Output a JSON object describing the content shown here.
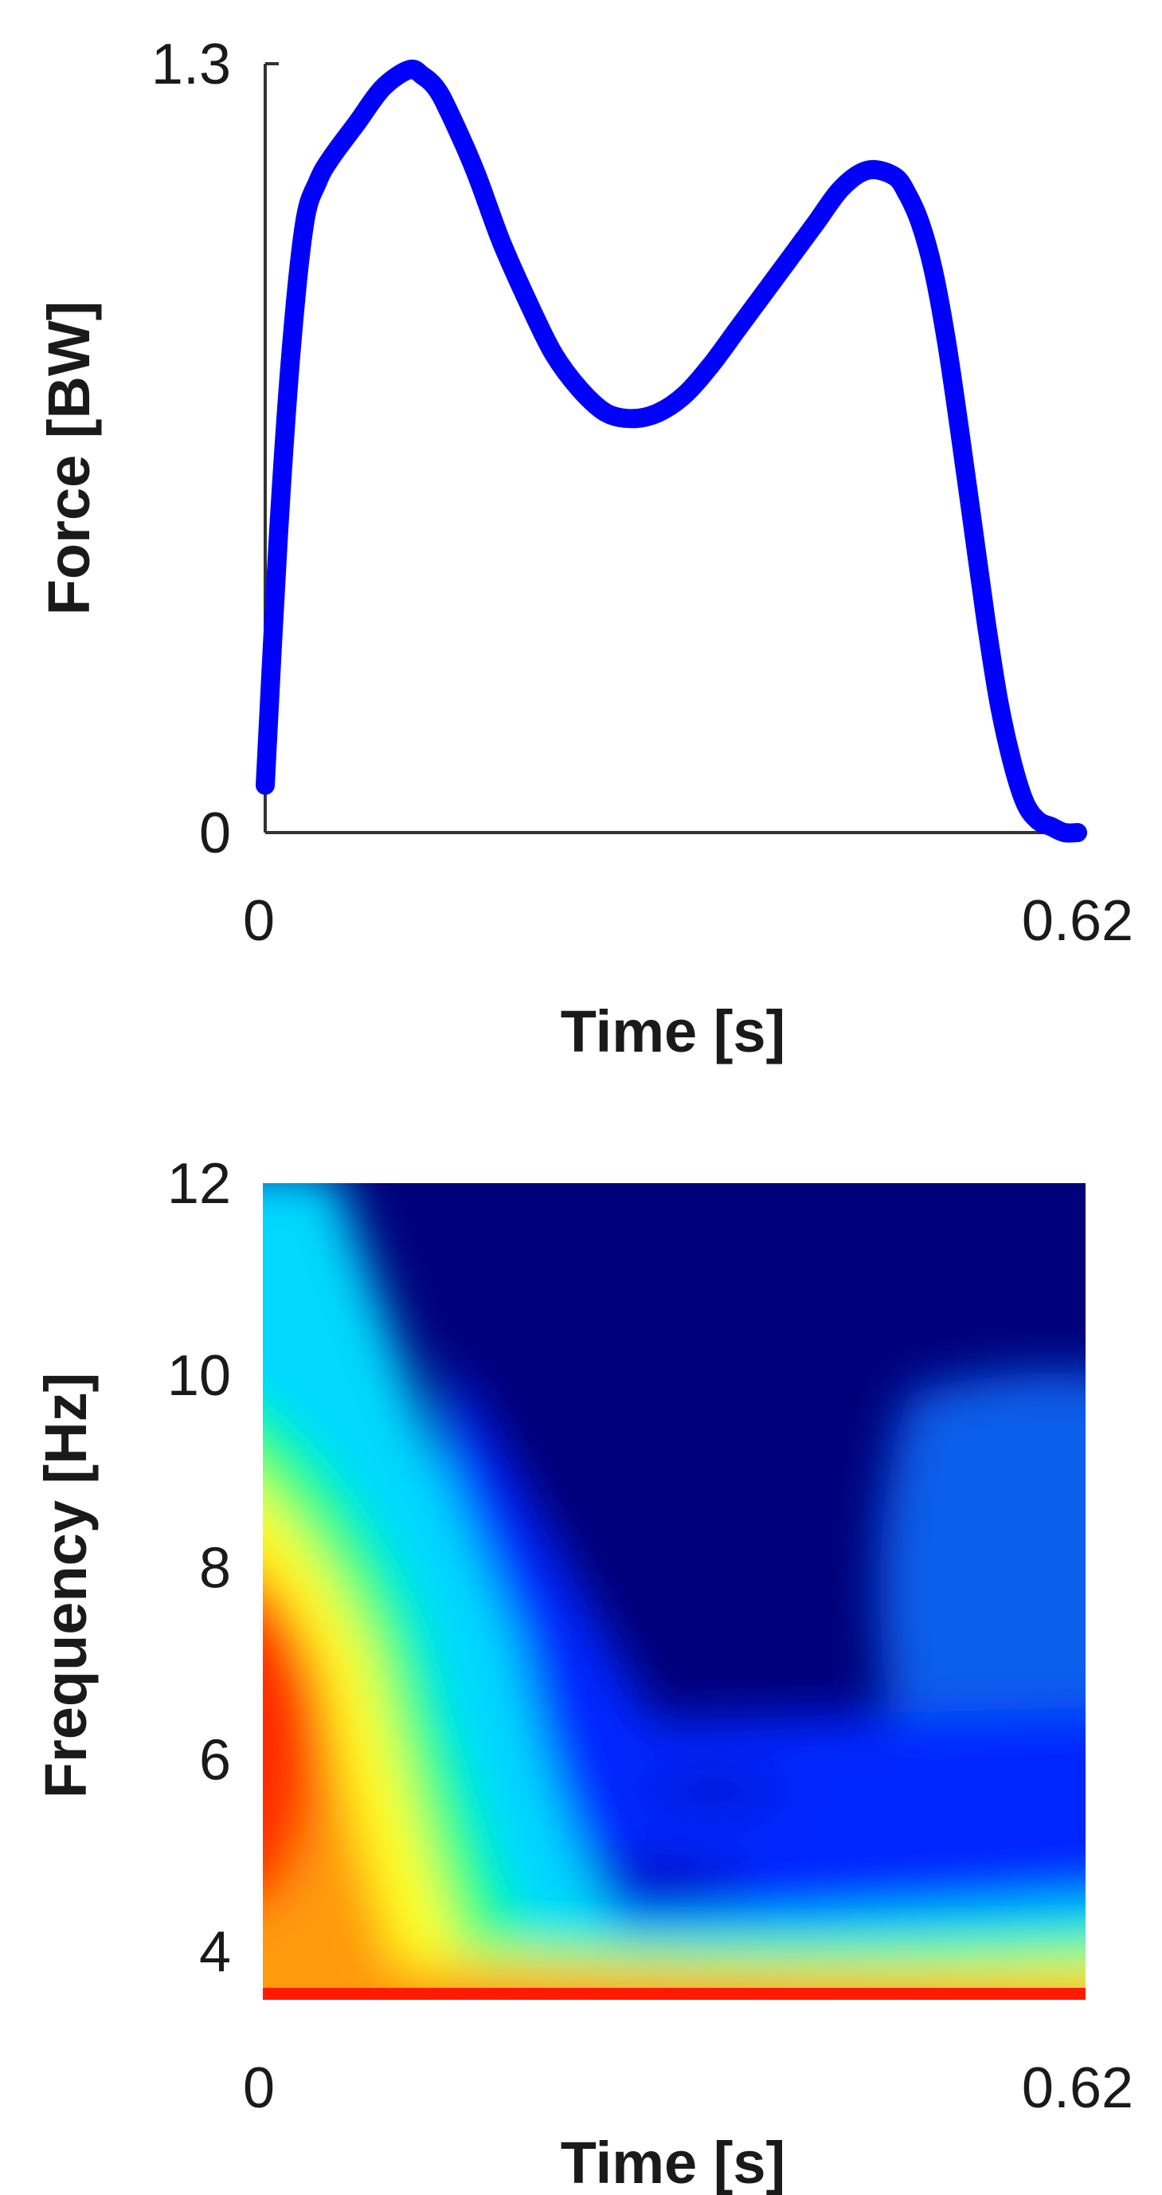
{
  "chart_data": [
    {
      "type": "line",
      "xlabel": "Time [s]",
      "ylabel": "Force [BW]",
      "xlim": [
        0,
        0.62
      ],
      "ylim": [
        0,
        1.3
      ],
      "xticks": [
        "0",
        "0.62"
      ],
      "yticks": [
        "0",
        "1.3"
      ],
      "grid": false,
      "series": [
        {
          "color": "#0000ff",
          "x": [
            0.0,
            0.01,
            0.02,
            0.03,
            0.04,
            0.05,
            0.07,
            0.09,
            0.11,
            0.12,
            0.13,
            0.14,
            0.16,
            0.18,
            0.2,
            0.22,
            0.24,
            0.26,
            0.28,
            0.3,
            0.32,
            0.34,
            0.36,
            0.38,
            0.4,
            0.42,
            0.44,
            0.46,
            0.48,
            0.49,
            0.5,
            0.51,
            0.52,
            0.53,
            0.54,
            0.55,
            0.56,
            0.57,
            0.58,
            0.59,
            0.6,
            0.61,
            0.62
          ],
          "y": [
            0.08,
            0.5,
            0.82,
            1.03,
            1.1,
            1.14,
            1.2,
            1.26,
            1.29,
            1.28,
            1.26,
            1.22,
            1.12,
            1.0,
            0.9,
            0.81,
            0.75,
            0.71,
            0.7,
            0.71,
            0.74,
            0.79,
            0.85,
            0.91,
            0.97,
            1.03,
            1.09,
            1.12,
            1.11,
            1.08,
            1.03,
            0.95,
            0.83,
            0.68,
            0.52,
            0.36,
            0.22,
            0.12,
            0.05,
            0.02,
            0.01,
            0.0,
            0.0
          ]
        }
      ]
    },
    {
      "type": "heatmap",
      "xlabel": "Time [s]",
      "ylabel": "Frequency [Hz]",
      "xlim": [
        0,
        0.62
      ],
      "ylim": [
        3.5,
        12
      ],
      "xticks": [
        "0",
        "0.62"
      ],
      "yticks": [
        "4",
        "6",
        "8",
        "10",
        "12"
      ],
      "ytick_values": [
        4,
        6,
        8,
        10,
        12
      ],
      "colormap": "jet",
      "grid": false
    }
  ]
}
